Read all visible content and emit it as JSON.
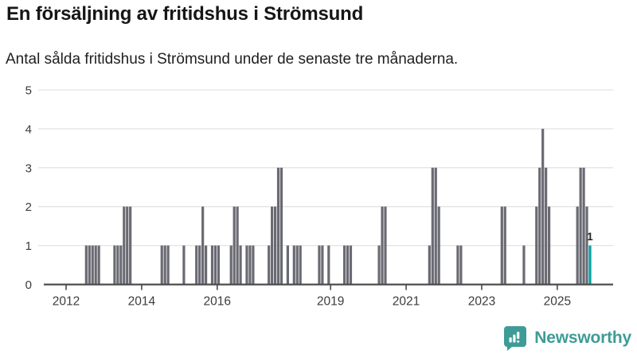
{
  "header": {
    "title": "En försäljning av fritidshus i Strömsund",
    "subtitle": "Antal sålda fritidshus i Strömsund under de senaste tre månaderna."
  },
  "chart_data": {
    "type": "bar",
    "title": "En försäljning av fritidshus i Strömsund",
    "xlabel": "",
    "ylabel": "",
    "ylim": [
      0,
      5
    ],
    "yticks": [
      0,
      1,
      2,
      3,
      4,
      5
    ],
    "xticks": [
      2012,
      2014,
      2016,
      2019,
      2021,
      2023,
      2025
    ],
    "grid": true,
    "bar_color": "#6a6a73",
    "highlight_color": "#00a3a4",
    "axis_color": "#4a4a4a",
    "grid_color": "#e3e3e3",
    "label_color": "#3c3c3c",
    "annotation": {
      "text": "1",
      "month": "2025-11"
    },
    "bars": [
      {
        "m": "2012-07",
        "v": 1
      },
      {
        "m": "2012-08",
        "v": 1
      },
      {
        "m": "2012-09",
        "v": 1
      },
      {
        "m": "2012-10",
        "v": 1
      },
      {
        "m": "2012-11",
        "v": 1
      },
      {
        "m": "2013-04",
        "v": 1
      },
      {
        "m": "2013-05",
        "v": 1
      },
      {
        "m": "2013-06",
        "v": 1
      },
      {
        "m": "2013-07",
        "v": 2
      },
      {
        "m": "2013-08",
        "v": 2
      },
      {
        "m": "2013-09",
        "v": 2
      },
      {
        "m": "2014-07",
        "v": 1
      },
      {
        "m": "2014-08",
        "v": 1
      },
      {
        "m": "2014-09",
        "v": 1
      },
      {
        "m": "2015-02",
        "v": 1
      },
      {
        "m": "2015-06",
        "v": 1
      },
      {
        "m": "2015-07",
        "v": 1
      },
      {
        "m": "2015-08",
        "v": 2
      },
      {
        "m": "2015-09",
        "v": 1
      },
      {
        "m": "2015-11",
        "v": 1
      },
      {
        "m": "2015-12",
        "v": 1
      },
      {
        "m": "2016-01",
        "v": 1
      },
      {
        "m": "2016-05",
        "v": 1
      },
      {
        "m": "2016-06",
        "v": 2
      },
      {
        "m": "2016-07",
        "v": 2
      },
      {
        "m": "2016-08",
        "v": 1
      },
      {
        "m": "2016-10",
        "v": 1
      },
      {
        "m": "2016-11",
        "v": 1
      },
      {
        "m": "2016-12",
        "v": 1
      },
      {
        "m": "2017-05",
        "v": 1
      },
      {
        "m": "2017-06",
        "v": 2
      },
      {
        "m": "2017-07",
        "v": 2
      },
      {
        "m": "2017-08",
        "v": 3
      },
      {
        "m": "2017-09",
        "v": 3
      },
      {
        "m": "2017-11",
        "v": 1
      },
      {
        "m": "2018-01",
        "v": 1
      },
      {
        "m": "2018-02",
        "v": 1
      },
      {
        "m": "2018-03",
        "v": 1
      },
      {
        "m": "2018-09",
        "v": 1
      },
      {
        "m": "2018-10",
        "v": 1
      },
      {
        "m": "2018-12",
        "v": 1
      },
      {
        "m": "2019-05",
        "v": 1
      },
      {
        "m": "2019-06",
        "v": 1
      },
      {
        "m": "2019-07",
        "v": 1
      },
      {
        "m": "2020-04",
        "v": 1
      },
      {
        "m": "2020-05",
        "v": 2
      },
      {
        "m": "2020-06",
        "v": 2
      },
      {
        "m": "2021-08",
        "v": 1
      },
      {
        "m": "2021-09",
        "v": 3
      },
      {
        "m": "2021-10",
        "v": 3
      },
      {
        "m": "2021-11",
        "v": 2
      },
      {
        "m": "2022-05",
        "v": 1
      },
      {
        "m": "2022-06",
        "v": 1
      },
      {
        "m": "2023-07",
        "v": 2
      },
      {
        "m": "2023-08",
        "v": 2
      },
      {
        "m": "2024-02",
        "v": 1
      },
      {
        "m": "2024-06",
        "v": 2
      },
      {
        "m": "2024-07",
        "v": 3
      },
      {
        "m": "2024-08",
        "v": 4
      },
      {
        "m": "2024-09",
        "v": 3
      },
      {
        "m": "2024-10",
        "v": 2
      },
      {
        "m": "2025-07",
        "v": 2
      },
      {
        "m": "2025-08",
        "v": 3
      },
      {
        "m": "2025-09",
        "v": 3
      },
      {
        "m": "2025-10",
        "v": 2
      },
      {
        "m": "2025-11",
        "v": 1,
        "highlight": true
      }
    ]
  },
  "footer": {
    "brand": "Newsworthy",
    "logo_color": "#3e9c96"
  }
}
